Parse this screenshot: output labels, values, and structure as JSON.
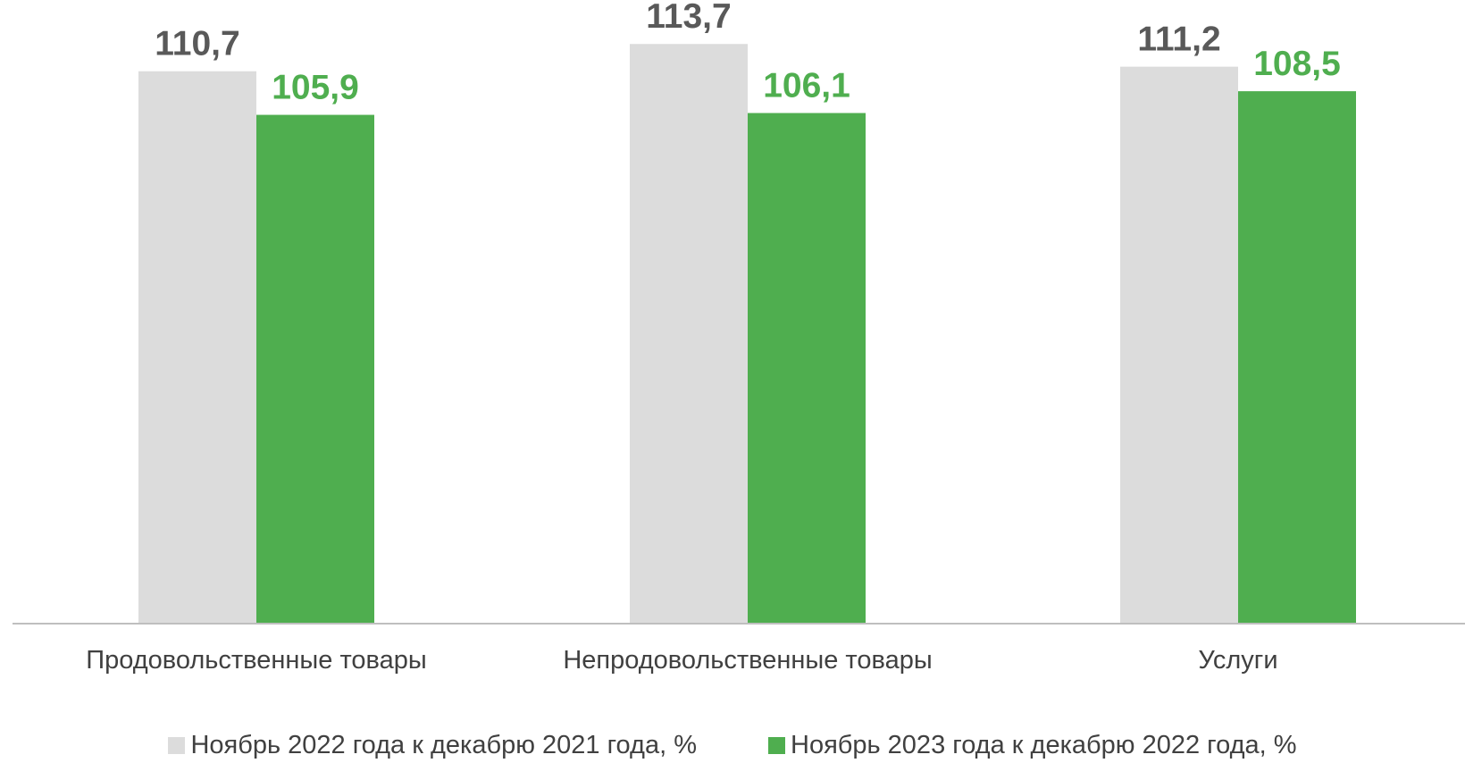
{
  "chart_data": {
    "type": "bar",
    "categories": [
      "Продовольственные товары",
      "Непродовольственные товары",
      "Услуги"
    ],
    "series": [
      {
        "name": "Ноябрь 2022 года к декабрю 2021 года, %",
        "values": [
          110.7,
          113.7,
          111.2
        ],
        "labels": [
          "110,7",
          "113,7",
          "111,2"
        ],
        "color": "#dcdcdc",
        "label_color": "#595959"
      },
      {
        "name": "Ноябрь 2023 года к декабрю 2022 года, %",
        "values": [
          105.9,
          106.1,
          108.5
        ],
        "labels": [
          "105,9",
          "106,1",
          "108,5"
        ],
        "color": "#4fae4f",
        "label_color": "#4fae4f"
      }
    ],
    "title": "",
    "xlabel": "",
    "ylabel": "",
    "ylim": [
      50,
      115
    ],
    "grid": false,
    "legend": "bottom",
    "axis_color": "#bfbfbf"
  }
}
